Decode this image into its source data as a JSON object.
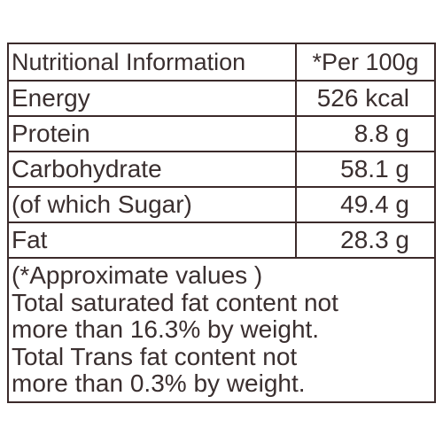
{
  "table": {
    "header": [
      "Nutritional Information",
      "*Per 100g"
    ],
    "rows": [
      [
        "Energy",
        "526 kcal"
      ],
      [
        "Protein",
        "8.8 g"
      ],
      [
        "Carbohydrate",
        "58.1 g"
      ],
      [
        "(of which Sugar)",
        "49.4 g"
      ],
      [
        "Fat",
        "28.3 g"
      ]
    ],
    "footnote": [
      "(*Approximate values )",
      "Total saturated fat content not",
      "more than 16.3% by weight.",
      "Total Trans fat content not",
      "more than 0.3% by weight."
    ]
  }
}
